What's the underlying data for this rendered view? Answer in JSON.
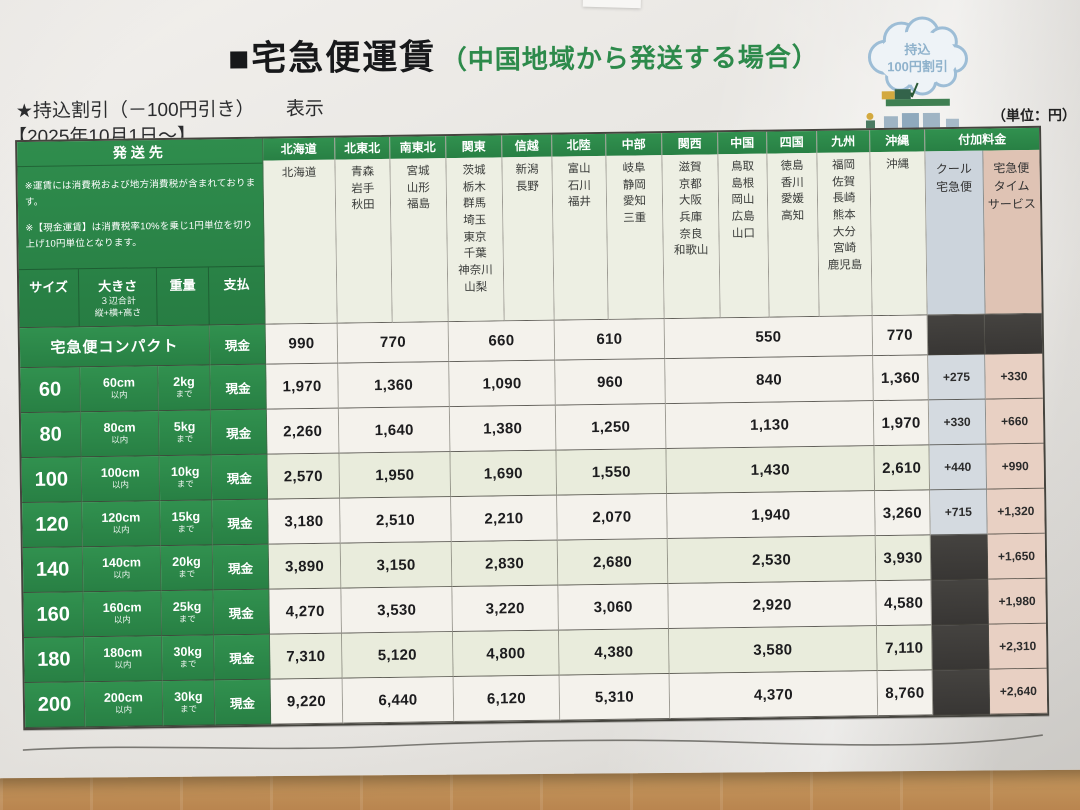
{
  "title": {
    "main": "■宅急便運賃",
    "paren": "（中国地域から発送する場合）"
  },
  "discount_line": {
    "text": "★持込割引（－100円引き）",
    "suffix": "表示"
  },
  "effective_date": "【2025年10月1日～】",
  "unit_label": "（単位：円）",
  "cloud_badge": {
    "line1": "持込",
    "line2": "100円割引"
  },
  "table": {
    "destination_header": "発送先",
    "notes": [
      "※運賃には消費税および地方消費税が含まれております。",
      "※【現金運賃】は消費税率10%を乗じ1円単位を切り上げ10円単位となります。"
    ],
    "col_headers": {
      "size": "サイズ",
      "dimensions": "大きさ",
      "dimensions_note1": "３辺合計",
      "dimensions_note2": "縦+横+高さ",
      "weight": "重量",
      "payment": "支払"
    },
    "regions": [
      {
        "name": "北海道",
        "prefectures": [
          "北海道"
        ]
      },
      {
        "name": "北東北",
        "prefectures": [
          "青森",
          "岩手",
          "秋田"
        ]
      },
      {
        "name": "南東北",
        "prefectures": [
          "宮城",
          "山形",
          "福島"
        ]
      },
      {
        "name": "関東",
        "prefectures": [
          "茨城",
          "栃木",
          "群馬",
          "埼玉",
          "東京",
          "千葉",
          "神奈川",
          "山梨"
        ]
      },
      {
        "name": "信越",
        "prefectures": [
          "新潟",
          "長野"
        ]
      },
      {
        "name": "北陸",
        "prefectures": [
          "富山",
          "石川",
          "福井"
        ]
      },
      {
        "name": "中部",
        "prefectures": [
          "岐阜",
          "静岡",
          "愛知",
          "三重"
        ]
      },
      {
        "name": "関西",
        "prefectures": [
          "滋賀",
          "京都",
          "大阪",
          "兵庫",
          "奈良",
          "和歌山"
        ]
      },
      {
        "name": "中国",
        "prefectures": [
          "鳥取",
          "島根",
          "岡山",
          "広島",
          "山口"
        ]
      },
      {
        "name": "四国",
        "prefectures": [
          "徳島",
          "香川",
          "愛媛",
          "高知"
        ]
      },
      {
        "name": "九州",
        "prefectures": [
          "福岡",
          "佐賀",
          "長崎",
          "熊本",
          "大分",
          "宮崎",
          "鹿児島"
        ]
      },
      {
        "name": "沖縄",
        "prefectures": [
          "沖縄"
        ]
      }
    ],
    "surcharge_header": "付加料金",
    "surcharge_cols": [
      {
        "label_lines": [
          "クール",
          "宅急便"
        ]
      },
      {
        "label_lines": [
          "宅急便",
          "タイム",
          "サービス"
        ]
      }
    ],
    "fare_spans": [
      1,
      2,
      2,
      2,
      4,
      1
    ],
    "compact_row": {
      "label": "宅急便コンパクト",
      "payment": "現金",
      "fares": [
        "990",
        "770",
        "660",
        "610",
        "550",
        "770"
      ],
      "cool": null,
      "time": null
    },
    "rows": [
      {
        "size": "60",
        "dimension": "60cm",
        "dimension_sub": "以内",
        "weight": "2kg",
        "weight_sub": "まで",
        "payment": "現金",
        "fares": [
          "1,970",
          "1,360",
          "1,090",
          "960",
          "840",
          "1,360"
        ],
        "cool": "+275",
        "time": "+330"
      },
      {
        "size": "80",
        "dimension": "80cm",
        "dimension_sub": "以内",
        "weight": "5kg",
        "weight_sub": "まで",
        "payment": "現金",
        "fares": [
          "2,260",
          "1,640",
          "1,380",
          "1,250",
          "1,130",
          "1,970"
        ],
        "cool": "+330",
        "time": "+660"
      },
      {
        "size": "100",
        "dimension": "100cm",
        "dimension_sub": "以内",
        "weight": "10kg",
        "weight_sub": "まで",
        "payment": "現金",
        "fares": [
          "2,570",
          "1,950",
          "1,690",
          "1,550",
          "1,430",
          "2,610"
        ],
        "cool": "+440",
        "time": "+990"
      },
      {
        "size": "120",
        "dimension": "120cm",
        "dimension_sub": "以内",
        "weight": "15kg",
        "weight_sub": "まで",
        "payment": "現金",
        "fares": [
          "3,180",
          "2,510",
          "2,210",
          "2,070",
          "1,940",
          "3,260"
        ],
        "cool": "+715",
        "time": "+1,320"
      },
      {
        "size": "140",
        "dimension": "140cm",
        "dimension_sub": "以内",
        "weight": "20kg",
        "weight_sub": "まで",
        "payment": "現金",
        "fares": [
          "3,890",
          "3,150",
          "2,830",
          "2,680",
          "2,530",
          "3,930"
        ],
        "cool": null,
        "time": "+1,650"
      },
      {
        "size": "160",
        "dimension": "160cm",
        "dimension_sub": "以内",
        "weight": "25kg",
        "weight_sub": "まで",
        "payment": "現金",
        "fares": [
          "4,270",
          "3,530",
          "3,220",
          "3,060",
          "2,920",
          "4,580"
        ],
        "cool": null,
        "time": "+1,980"
      },
      {
        "size": "180",
        "dimension": "180cm",
        "dimension_sub": "以内",
        "weight": "30kg",
        "weight_sub": "まで",
        "payment": "現金",
        "fares": [
          "7,310",
          "5,120",
          "4,800",
          "4,380",
          "3,580",
          "7,110"
        ],
        "cool": null,
        "time": "+2,310"
      },
      {
        "size": "200",
        "dimension": "200cm",
        "dimension_sub": "以内",
        "weight": "30kg",
        "weight_sub": "まで",
        "payment": "現金",
        "fares": [
          "9,220",
          "6,440",
          "6,120",
          "5,310",
          "4,370",
          "8,760"
        ],
        "cool": null,
        "time": "+2,640"
      }
    ]
  }
}
